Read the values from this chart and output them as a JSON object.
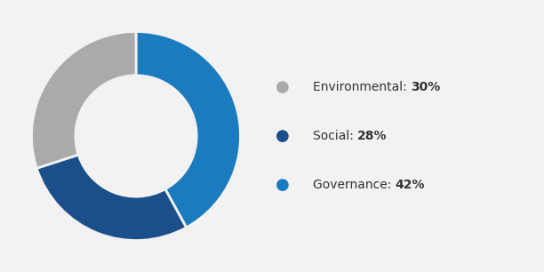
{
  "labels": [
    "Governance",
    "Social",
    "Environmental"
  ],
  "values": [
    42,
    28,
    30
  ],
  "colors": [
    "#1a7bbf",
    "#1a4f8a",
    "#aaaaaa"
  ],
  "background_color": "#f2f2f2",
  "donut_width": 0.42,
  "startangle": 90,
  "counterclock": false,
  "legend": [
    {
      "label": "Environmental: ",
      "pct": "30%",
      "color": "#aaaaaa"
    },
    {
      "label": "Social: ",
      "pct": "28%",
      "color": "#1a4f8a"
    },
    {
      "label": "Governance: ",
      "pct": "42%",
      "color": "#1a7bbf"
    }
  ],
  "text_color": "#333333",
  "legend_fontsize": 10,
  "dot_fontsize": 13,
  "edge_color": "#f2f2f2",
  "edge_width": 2.0
}
